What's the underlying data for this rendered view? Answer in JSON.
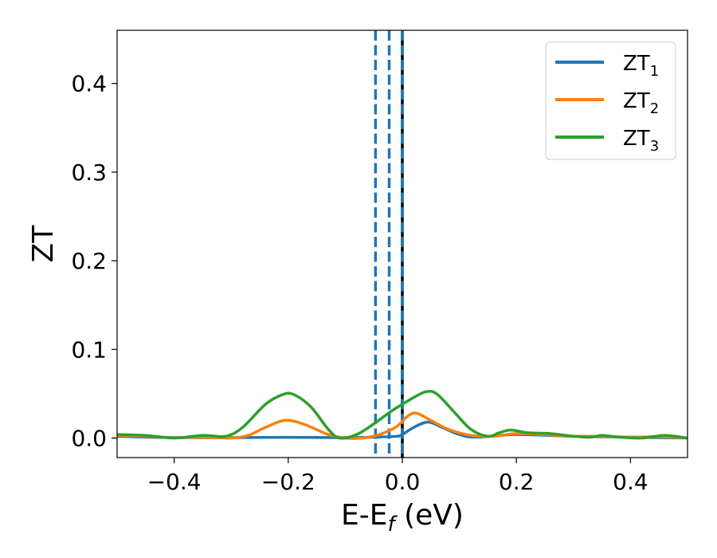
{
  "chart_data": {
    "type": "line",
    "xlabel_main": "E-E",
    "xlabel_sub": "f",
    "xlabel_unit": " (eV)",
    "ylabel": "ZT",
    "xlim": [
      -0.5,
      0.5
    ],
    "ylim": [
      -0.022,
      0.46
    ],
    "grid": false,
    "legend_position": "top-right",
    "x_ticks": [
      {
        "value": -0.4,
        "label": "−0.4"
      },
      {
        "value": -0.2,
        "label": "−0.2"
      },
      {
        "value": 0.0,
        "label": "0.0"
      },
      {
        "value": 0.2,
        "label": "0.2"
      },
      {
        "value": 0.4,
        "label": "0.4"
      }
    ],
    "y_ticks": [
      {
        "value": 0.0,
        "label": "0.0"
      },
      {
        "value": 0.1,
        "label": "0.1"
      },
      {
        "value": 0.2,
        "label": "0.2"
      },
      {
        "value": 0.3,
        "label": "0.3"
      },
      {
        "value": 0.4,
        "label": "0.4"
      }
    ],
    "vertical_lines": [
      {
        "x": -0.047,
        "style": "dashed",
        "color": "#1f77b4"
      },
      {
        "x": -0.023,
        "style": "dashed",
        "color": "#1f77b4"
      },
      {
        "x": 0.0,
        "style": "solid",
        "color": "#000000"
      },
      {
        "x": 0.0,
        "style": "dashed",
        "color": "#1f77b4"
      }
    ],
    "series": [
      {
        "name_main": "ZT",
        "name_sub": "1",
        "color": "#1f77b4",
        "points": [
          [
            -0.5,
            0.002
          ],
          [
            -0.45,
            0.001
          ],
          [
            -0.4,
            0.0005
          ],
          [
            -0.3,
            0.0005
          ],
          [
            -0.2,
            0.0008
          ],
          [
            -0.1,
            0.0005
          ],
          [
            -0.05,
            0.001
          ],
          [
            -0.01,
            0.002
          ],
          [
            0.0,
            0.004
          ],
          [
            0.02,
            0.012
          ],
          [
            0.045,
            0.018
          ],
          [
            0.07,
            0.012
          ],
          [
            0.1,
            0.004
          ],
          [
            0.13,
            0.001
          ],
          [
            0.2,
            0.004
          ],
          [
            0.3,
            0.002
          ],
          [
            0.4,
            0.001
          ],
          [
            0.5,
            0.0
          ]
        ]
      },
      {
        "name_main": "ZT",
        "name_sub": "2",
        "color": "#ff7f0e",
        "points": [
          [
            -0.5,
            0.003
          ],
          [
            -0.45,
            0.002
          ],
          [
            -0.4,
            0.0005
          ],
          [
            -0.35,
            0.001
          ],
          [
            -0.3,
            0.0
          ],
          [
            -0.27,
            0.003
          ],
          [
            -0.24,
            0.012
          ],
          [
            -0.205,
            0.02
          ],
          [
            -0.17,
            0.015
          ],
          [
            -0.13,
            0.004
          ],
          [
            -0.1,
            0.0
          ],
          [
            -0.07,
            0.0
          ],
          [
            -0.04,
            0.004
          ],
          [
            -0.01,
            0.013
          ],
          [
            0.01,
            0.025
          ],
          [
            0.025,
            0.028
          ],
          [
            0.05,
            0.02
          ],
          [
            0.08,
            0.01
          ],
          [
            0.12,
            0.003
          ],
          [
            0.16,
            0.002
          ],
          [
            0.2,
            0.005
          ],
          [
            0.25,
            0.004
          ],
          [
            0.3,
            0.002
          ],
          [
            0.35,
            0.002
          ],
          [
            0.4,
            0.001
          ],
          [
            0.45,
            0.0015
          ],
          [
            0.5,
            0.0
          ]
        ]
      },
      {
        "name_main": "ZT",
        "name_sub": "3",
        "color": "#2ca02c",
        "points": [
          [
            -0.5,
            0.004
          ],
          [
            -0.45,
            0.003
          ],
          [
            -0.4,
            0.0
          ],
          [
            -0.35,
            0.003
          ],
          [
            -0.31,
            0.002
          ],
          [
            -0.28,
            0.012
          ],
          [
            -0.24,
            0.038
          ],
          [
            -0.21,
            0.049
          ],
          [
            -0.19,
            0.049
          ],
          [
            -0.16,
            0.035
          ],
          [
            -0.13,
            0.01
          ],
          [
            -0.11,
            0.0
          ],
          [
            -0.08,
            0.004
          ],
          [
            -0.05,
            0.016
          ],
          [
            -0.02,
            0.03
          ],
          [
            0.01,
            0.042
          ],
          [
            0.04,
            0.052
          ],
          [
            0.06,
            0.05
          ],
          [
            0.09,
            0.03
          ],
          [
            0.12,
            0.01
          ],
          [
            0.15,
            0.002
          ],
          [
            0.17,
            0.006
          ],
          [
            0.19,
            0.009
          ],
          [
            0.22,
            0.006
          ],
          [
            0.26,
            0.005
          ],
          [
            0.3,
            0.002
          ],
          [
            0.33,
            0.001
          ],
          [
            0.35,
            0.003
          ],
          [
            0.38,
            0.001
          ],
          [
            0.42,
            0.0
          ],
          [
            0.46,
            0.003
          ],
          [
            0.5,
            0.0
          ]
        ]
      }
    ]
  }
}
